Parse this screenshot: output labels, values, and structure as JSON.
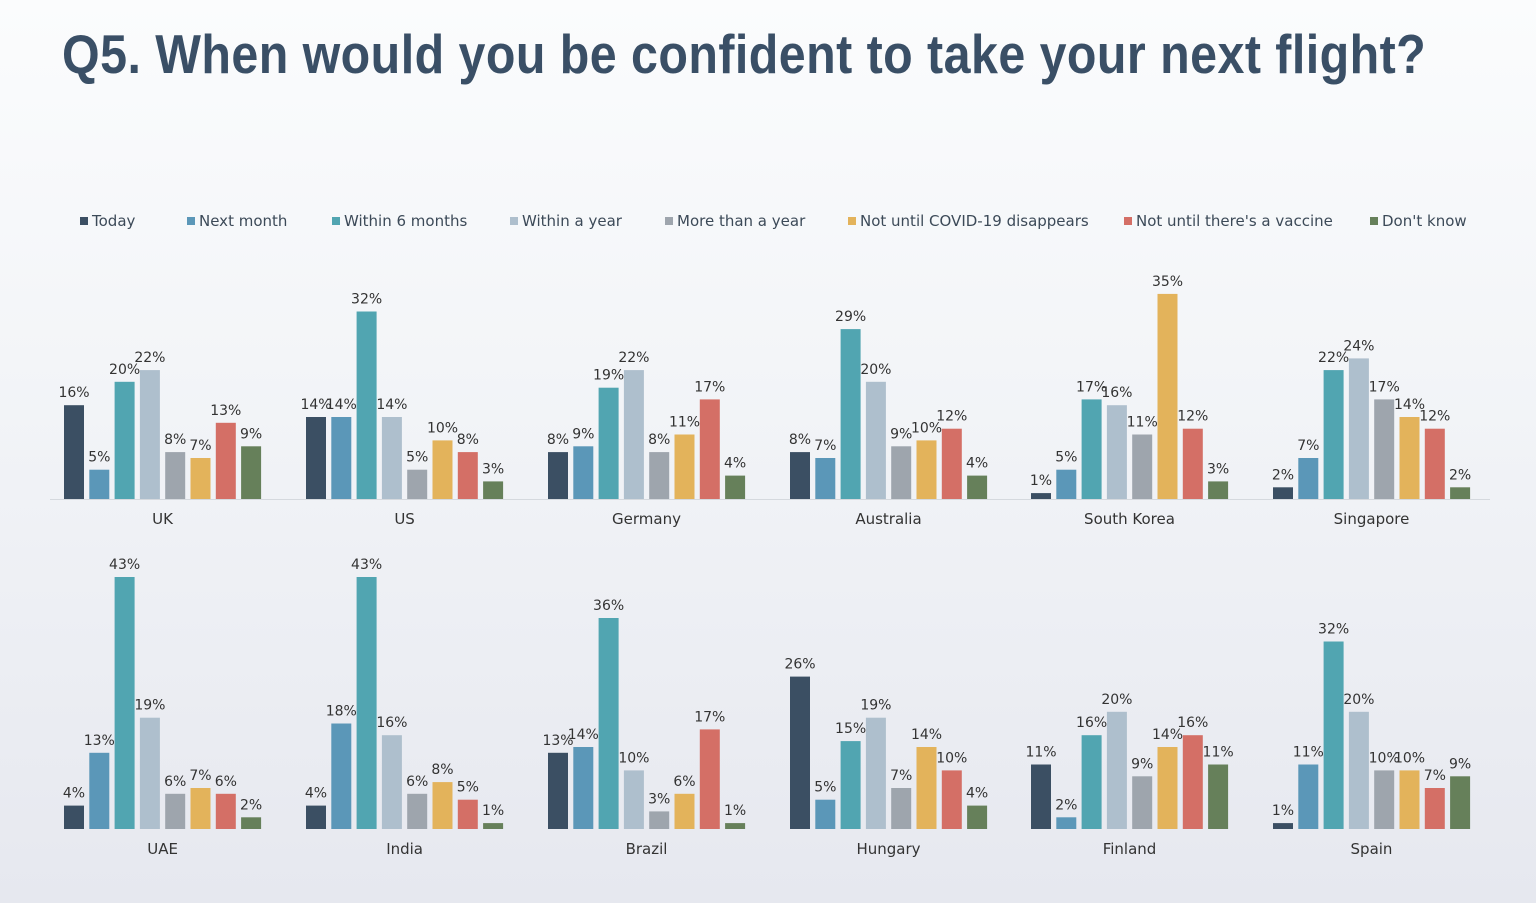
{
  "title": "Q5. When would you be confident to take your next flight?",
  "chart_data": {
    "type": "bar",
    "title": "Q5. When would you be confident to take your next flight?",
    "series": [
      {
        "name": "Today",
        "color": "#3b4f63"
      },
      {
        "name": "Next month",
        "color": "#5b97b8"
      },
      {
        "name": "Within 6 months",
        "color": "#51a5b1"
      },
      {
        "name": "Within a year",
        "color": "#aebfcd"
      },
      {
        "name": "More than a year",
        "color": "#9ea5ad"
      },
      {
        "name": "Not until COVID-19 disappears",
        "color": "#e3b35b"
      },
      {
        "name": "Not until there's a vaccine",
        "color": "#d46f66"
      },
      {
        "name": "Don't know",
        "color": "#66805a"
      }
    ],
    "groups": [
      {
        "country": "UK",
        "values": [
          16,
          5,
          20,
          22,
          8,
          7,
          13,
          9
        ]
      },
      {
        "country": "US",
        "values": [
          14,
          14,
          32,
          14,
          5,
          10,
          8,
          3
        ]
      },
      {
        "country": "Germany",
        "values": [
          8,
          9,
          19,
          22,
          8,
          11,
          17,
          4
        ]
      },
      {
        "country": "Australia",
        "values": [
          8,
          7,
          29,
          20,
          9,
          10,
          12,
          4
        ]
      },
      {
        "country": "South Korea",
        "values": [
          1,
          5,
          17,
          16,
          11,
          35,
          12,
          3
        ]
      },
      {
        "country": "Singapore",
        "values": [
          2,
          7,
          22,
          24,
          17,
          14,
          12,
          2
        ]
      },
      {
        "country": "UAE",
        "values": [
          4,
          13,
          43,
          19,
          6,
          7,
          6,
          2
        ]
      },
      {
        "country": "India",
        "values": [
          4,
          18,
          43,
          16,
          6,
          8,
          5,
          1
        ]
      },
      {
        "country": "Brazil",
        "values": [
          13,
          14,
          36,
          10,
          3,
          6,
          17,
          1
        ]
      },
      {
        "country": "Hungary",
        "values": [
          26,
          5,
          15,
          19,
          7,
          14,
          10,
          4
        ]
      },
      {
        "country": "Finland",
        "values": [
          11,
          2,
          16,
          20,
          9,
          14,
          16,
          11
        ]
      },
      {
        "country": "Spain",
        "values": [
          1,
          11,
          32,
          20,
          10,
          10,
          7,
          9
        ]
      }
    ],
    "value_suffix": "%",
    "legend_position": "top"
  }
}
